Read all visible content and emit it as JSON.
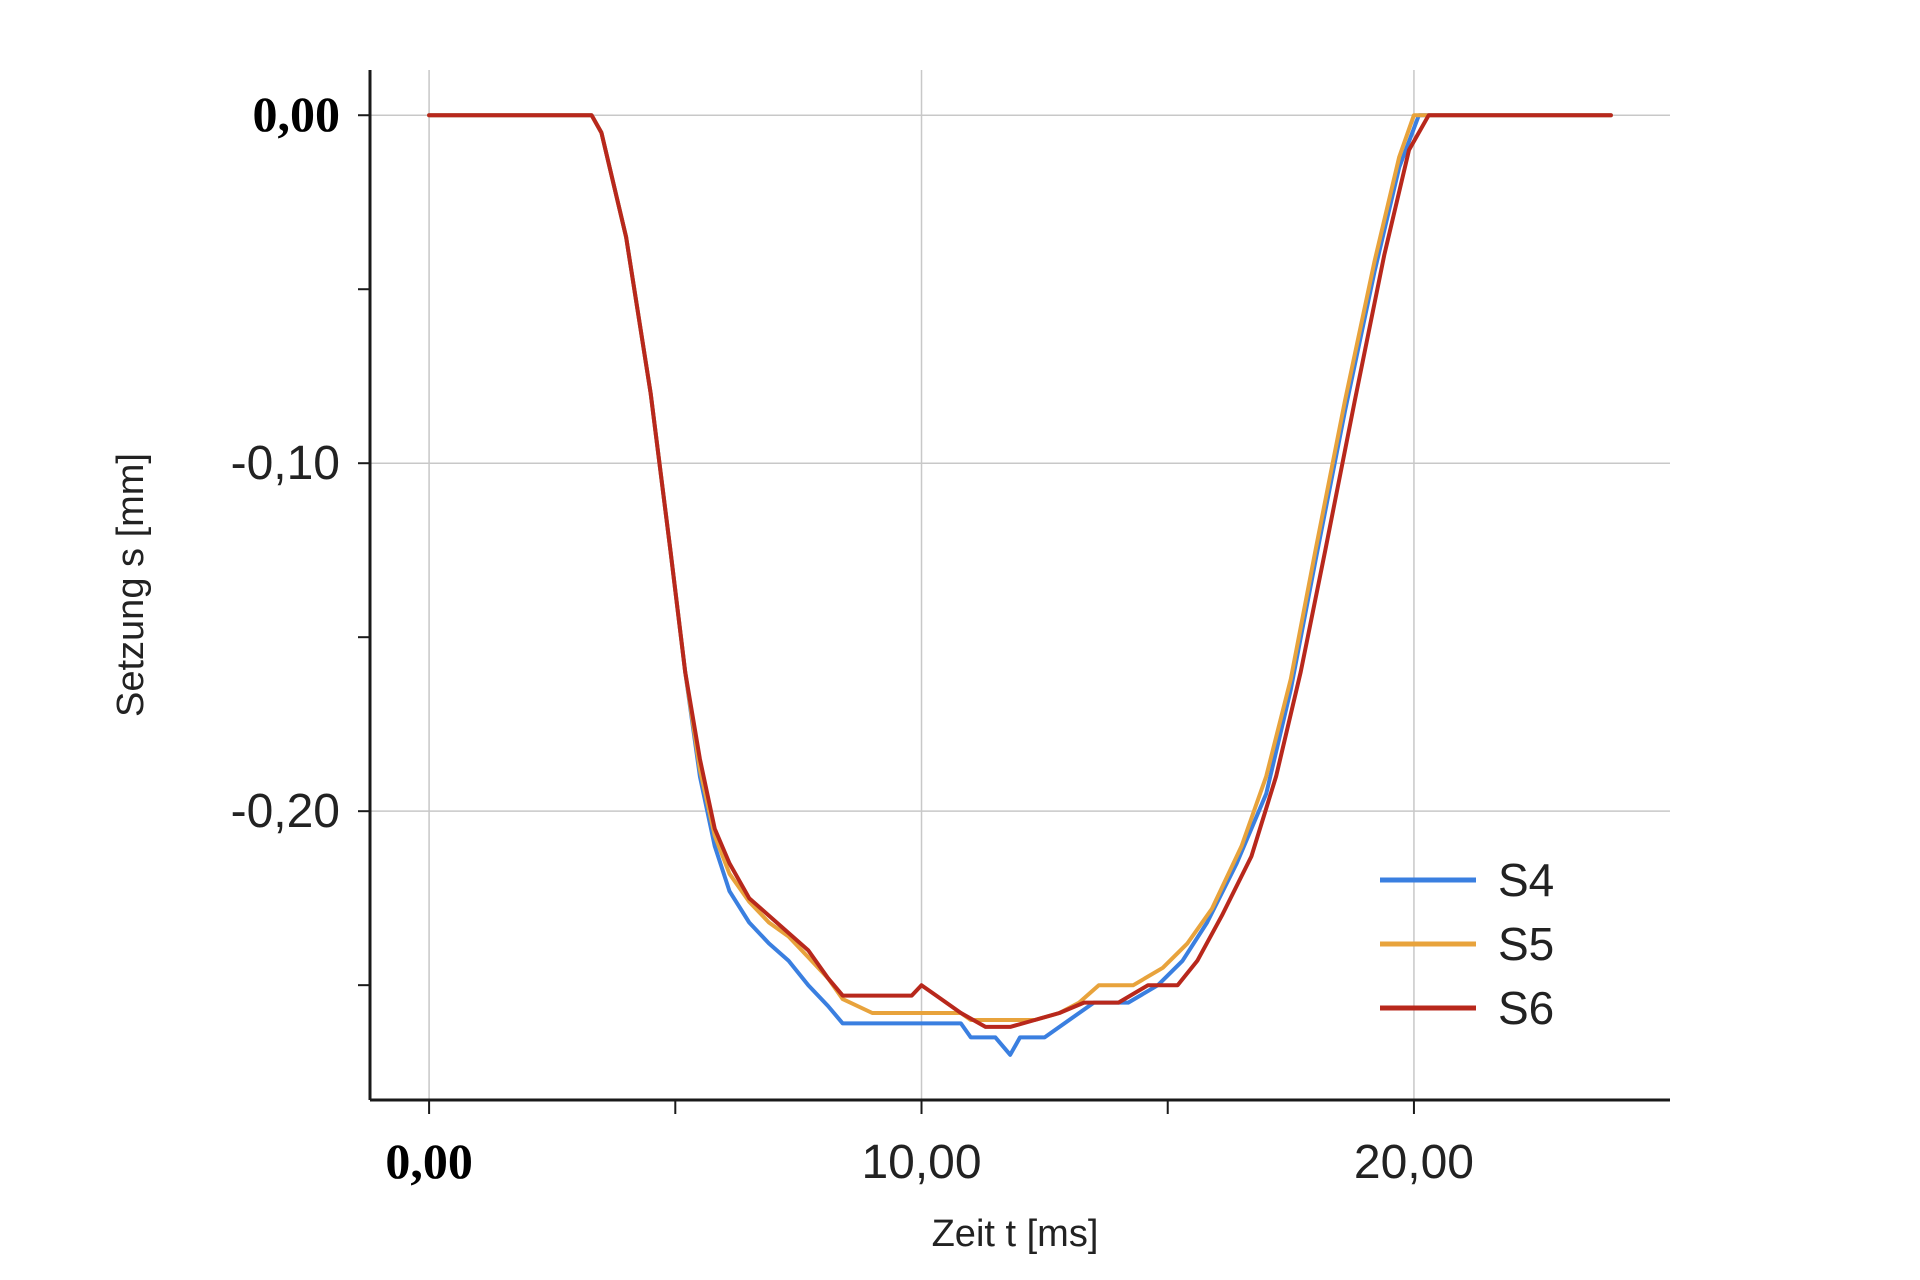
{
  "chart_data": {
    "type": "line",
    "xlabel": "Zeit t [ms]",
    "ylabel": "Setzung s [mm]",
    "xlim": [
      -1.2,
      25.2
    ],
    "ylim": [
      -0.283,
      0.013
    ],
    "x_ticks": [
      {
        "value": 0,
        "label": "0,00",
        "bold": true
      },
      {
        "value": 10,
        "label": "10,00",
        "bold": false
      },
      {
        "value": 20,
        "label": "20,00",
        "bold": false
      }
    ],
    "x_minor_ticks": [
      5,
      15
    ],
    "y_ticks": [
      {
        "value": 0,
        "label": "0,00",
        "bold": true
      },
      {
        "value": -0.1,
        "label": "-0,10",
        "bold": false
      },
      {
        "value": -0.2,
        "label": "-0,20",
        "bold": false
      }
    ],
    "y_minor_ticks": [
      -0.05,
      -0.15,
      -0.25
    ],
    "grid": true,
    "legend_position": "bottom-right",
    "series": [
      {
        "name": "S4",
        "color": "#3a7fe0",
        "points": [
          [
            0,
            0
          ],
          [
            3.3,
            0
          ],
          [
            3.5,
            -0.005
          ],
          [
            4,
            -0.035
          ],
          [
            4.5,
            -0.08
          ],
          [
            4.9,
            -0.125
          ],
          [
            5.2,
            -0.16
          ],
          [
            5.5,
            -0.19
          ],
          [
            5.8,
            -0.21
          ],
          [
            6.1,
            -0.223
          ],
          [
            6.5,
            -0.232
          ],
          [
            6.9,
            -0.238
          ],
          [
            7.3,
            -0.243
          ],
          [
            7.7,
            -0.25
          ],
          [
            8.1,
            -0.256
          ],
          [
            8.4,
            -0.261
          ],
          [
            9,
            -0.261
          ],
          [
            10,
            -0.261
          ],
          [
            10.8,
            -0.261
          ],
          [
            11,
            -0.265
          ],
          [
            11.5,
            -0.265
          ],
          [
            11.8,
            -0.27
          ],
          [
            12,
            -0.265
          ],
          [
            12.5,
            -0.265
          ],
          [
            13,
            -0.26
          ],
          [
            13.5,
            -0.255
          ],
          [
            14.2,
            -0.255
          ],
          [
            14.8,
            -0.25
          ],
          [
            15.3,
            -0.243
          ],
          [
            15.8,
            -0.232
          ],
          [
            16.4,
            -0.215
          ],
          [
            17,
            -0.195
          ],
          [
            17.5,
            -0.165
          ],
          [
            18,
            -0.128
          ],
          [
            18.6,
            -0.085
          ],
          [
            19.2,
            -0.045
          ],
          [
            19.7,
            -0.015
          ],
          [
            20.1,
            0
          ],
          [
            21,
            0
          ],
          [
            24,
            0
          ]
        ]
      },
      {
        "name": "S5",
        "color": "#e8a33c",
        "points": [
          [
            0,
            0
          ],
          [
            3.3,
            0
          ],
          [
            3.5,
            -0.005
          ],
          [
            4,
            -0.035
          ],
          [
            4.5,
            -0.08
          ],
          [
            4.9,
            -0.125
          ],
          [
            5.2,
            -0.16
          ],
          [
            5.5,
            -0.188
          ],
          [
            5.8,
            -0.207
          ],
          [
            6.1,
            -0.218
          ],
          [
            6.5,
            -0.226
          ],
          [
            6.9,
            -0.232
          ],
          [
            7.3,
            -0.236
          ],
          [
            7.7,
            -0.242
          ],
          [
            8.1,
            -0.248
          ],
          [
            8.4,
            -0.254
          ],
          [
            9,
            -0.258
          ],
          [
            10,
            -0.258
          ],
          [
            10.8,
            -0.258
          ],
          [
            11,
            -0.26
          ],
          [
            11.8,
            -0.26
          ],
          [
            12.3,
            -0.26
          ],
          [
            12.8,
            -0.258
          ],
          [
            13.2,
            -0.255
          ],
          [
            13.6,
            -0.25
          ],
          [
            14.3,
            -0.25
          ],
          [
            14.9,
            -0.245
          ],
          [
            15.4,
            -0.238
          ],
          [
            15.9,
            -0.228
          ],
          [
            16.5,
            -0.21
          ],
          [
            17,
            -0.19
          ],
          [
            17.5,
            -0.162
          ],
          [
            18,
            -0.125
          ],
          [
            18.6,
            -0.082
          ],
          [
            19.2,
            -0.042
          ],
          [
            19.7,
            -0.012
          ],
          [
            20,
            0
          ],
          [
            21,
            0
          ],
          [
            24,
            0
          ]
        ]
      },
      {
        "name": "S6",
        "color": "#b8281c",
        "points": [
          [
            0,
            0
          ],
          [
            3.3,
            0
          ],
          [
            3.5,
            -0.005
          ],
          [
            4,
            -0.035
          ],
          [
            4.5,
            -0.08
          ],
          [
            4.9,
            -0.125
          ],
          [
            5.2,
            -0.16
          ],
          [
            5.5,
            -0.185
          ],
          [
            5.8,
            -0.205
          ],
          [
            6.1,
            -0.215
          ],
          [
            6.5,
            -0.225
          ],
          [
            6.9,
            -0.23
          ],
          [
            7.3,
            -0.235
          ],
          [
            7.7,
            -0.24
          ],
          [
            8.1,
            -0.248
          ],
          [
            8.4,
            -0.253
          ],
          [
            9,
            -0.253
          ],
          [
            9.8,
            -0.253
          ],
          [
            10,
            -0.25
          ],
          [
            10.3,
            -0.253
          ],
          [
            10.8,
            -0.258
          ],
          [
            11.3,
            -0.262
          ],
          [
            11.8,
            -0.262
          ],
          [
            12.3,
            -0.26
          ],
          [
            12.8,
            -0.258
          ],
          [
            13.3,
            -0.255
          ],
          [
            14,
            -0.255
          ],
          [
            14.6,
            -0.25
          ],
          [
            15.2,
            -0.25
          ],
          [
            15.6,
            -0.243
          ],
          [
            16.1,
            -0.23
          ],
          [
            16.7,
            -0.213
          ],
          [
            17.2,
            -0.19
          ],
          [
            17.7,
            -0.16
          ],
          [
            18.2,
            -0.125
          ],
          [
            18.8,
            -0.082
          ],
          [
            19.4,
            -0.04
          ],
          [
            19.9,
            -0.01
          ],
          [
            20.3,
            0
          ],
          [
            21,
            0
          ],
          [
            24,
            0
          ]
        ]
      }
    ]
  }
}
